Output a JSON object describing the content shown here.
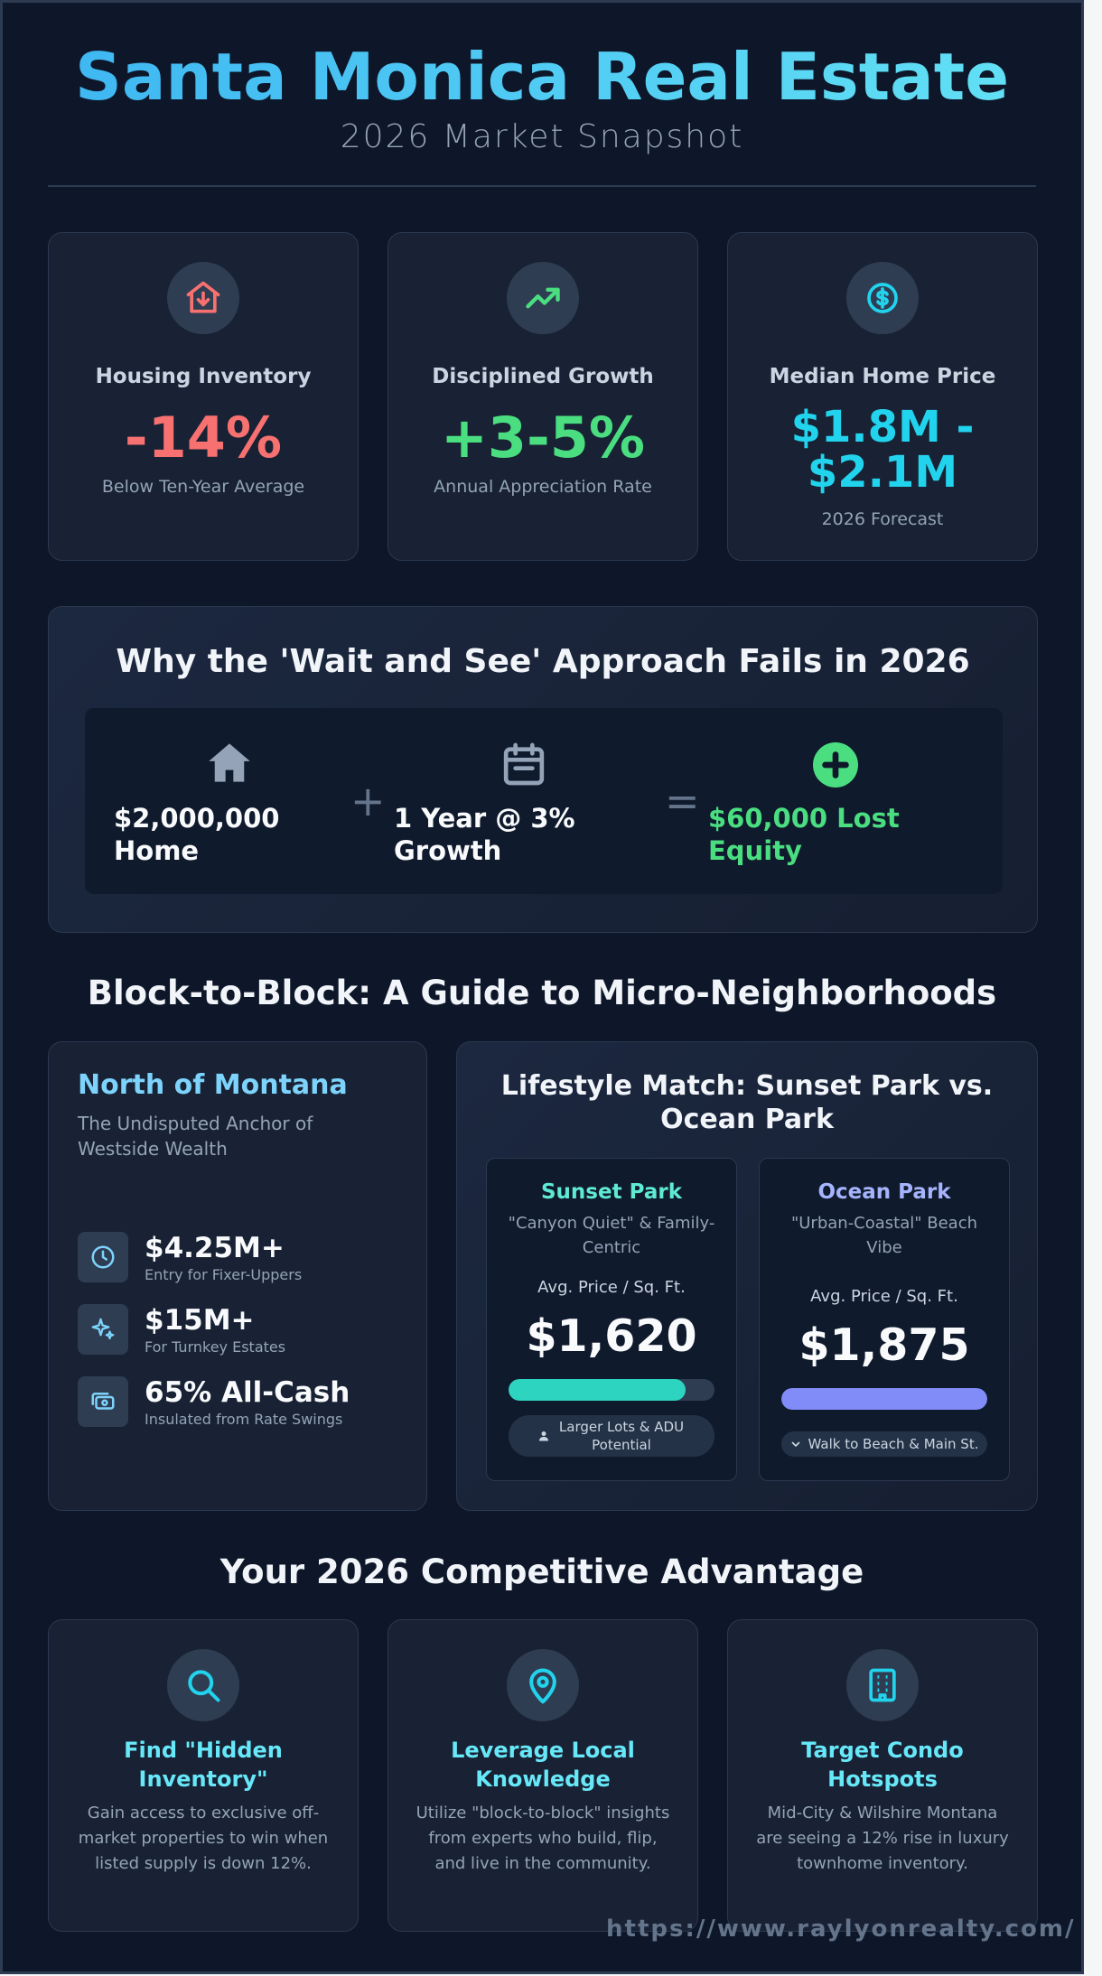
{
  "header": {
    "title": "Santa Monica Real Estate",
    "subtitle": "2026 Market Snapshot"
  },
  "stats": [
    {
      "icon": "house-down-icon",
      "label": "Housing Inventory",
      "value": "-14%",
      "sub": "Below Ten-Year Average",
      "color": "#f87171"
    },
    {
      "icon": "trending-up-icon",
      "label": "Disciplined Growth",
      "value": "+3-5%",
      "sub": "Annual Appreciation Rate",
      "color": "#4ade80"
    },
    {
      "icon": "dollar-coin-icon",
      "label": "Median Home Price",
      "value_line1": "$1.8M -",
      "value_line2": "$2.1M",
      "sub": "2026 Forecast",
      "color": "#22d3ee"
    }
  ],
  "why": {
    "title": "Why the 'Wait and See' Approach Fails in 2026",
    "home_line1": "$2,000,000",
    "home_line2": "Home",
    "plus": "+",
    "growth_line1": "1 Year @ 3%",
    "growth_line2": "Growth",
    "equals": "=",
    "loss_line1": "$60,000 Lost",
    "loss_line2": "Equity",
    "loss_color": "#4ade80"
  },
  "neighborhoods": {
    "section_title": "Block-to-Block: A Guide to Micro-Neighborhoods",
    "north": {
      "title": "North of Montana",
      "subtitle": "The Undisputed Anchor of Westside Wealth",
      "items": [
        {
          "icon": "clock-icon",
          "value": "$4.25M+",
          "desc": "Entry for Fixer-Uppers"
        },
        {
          "icon": "sparkle-icon",
          "value": "$15M+",
          "desc": "For Turnkey Estates"
        },
        {
          "icon": "cash-icon",
          "value": "65% All-Cash",
          "desc": "Insulated from Rate Swings"
        }
      ]
    },
    "lifestyle": {
      "title": "Lifestyle Match: Sunset Park vs. Ocean Park",
      "sunset": {
        "name": "Sunset Park",
        "tagline": "\"Canyon Quiet\" & Family-Centric",
        "avg_label": "Avg. Price / Sq. Ft.",
        "price": "$1,620",
        "bar_fraction": 0.86,
        "pill": "Larger Lots & ADU Potential",
        "color": "#5eead4",
        "bar_color": "#2dd4bf"
      },
      "ocean": {
        "name": "Ocean Park",
        "tagline": "\"Urban-Coastal\" Beach Vibe",
        "avg_label": "Avg. Price / Sq. Ft.",
        "price": "$1,875",
        "bar_fraction": 1.0,
        "pill": "Walk to Beach & Main St.",
        "color": "#a5b4fc",
        "bar_color": "#818cf8"
      }
    }
  },
  "advantage": {
    "section_title": "Your 2026 Competitive Advantage",
    "cards": [
      {
        "icon": "search-icon",
        "title": "Find \"Hidden Inventory\"",
        "desc": "Gain access to exclusive off-market properties to win when listed supply is down 12%."
      },
      {
        "icon": "map-pin-icon",
        "title": "Leverage Local Knowledge",
        "desc": "Utilize \"block-to-block\" insights from experts who build, flip, and live in the community."
      },
      {
        "icon": "building-icon",
        "title": "Target Condo Hotspots",
        "desc": "Mid-City & Wilshire Montana are seeing a 12% rise in luxury townhome inventory."
      }
    ]
  },
  "footer": {
    "url": "https://www.raylyonrealty.com/"
  }
}
